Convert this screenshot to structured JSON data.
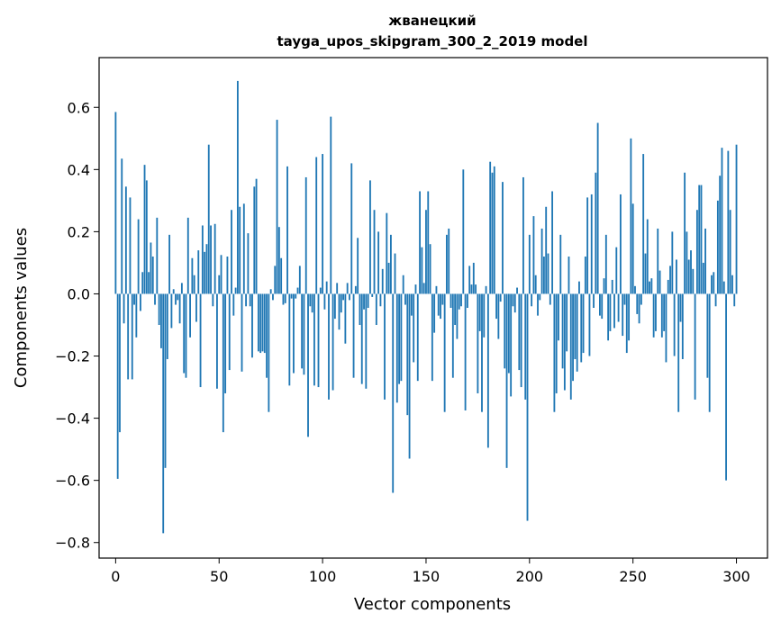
{
  "chart_data": {
    "type": "bar",
    "title": "жванецкий",
    "subtitle": "tayga_upos_skipgram_300_2_2019 model",
    "xlabel": "Vector components",
    "ylabel": "Components values",
    "xlim": [
      -8,
      315
    ],
    "ylim": [
      -0.85,
      0.76
    ],
    "x_ticks": [
      0,
      50,
      100,
      150,
      200,
      250,
      300
    ],
    "y_ticks": [
      0.6,
      0.4,
      0.2,
      0.0,
      -0.2,
      -0.4,
      -0.6,
      -0.8
    ],
    "x_tick_labels": [
      "0",
      "50",
      "100",
      "150",
      "200",
      "250",
      "300"
    ],
    "y_tick_labels": [
      "0.6",
      "0.4",
      "0.2",
      "0.0",
      "−0.2",
      "−0.4",
      "−0.6",
      "−0.8"
    ],
    "grid": false,
    "legend": "none",
    "bar_color": "#1f77b4",
    "values": [
      0.585,
      -0.595,
      -0.445,
      0.435,
      -0.095,
      0.345,
      -0.275,
      0.31,
      -0.275,
      -0.035,
      -0.14,
      0.24,
      -0.055,
      0.07,
      0.415,
      0.365,
      0.07,
      0.165,
      0.12,
      -0.035,
      0.245,
      -0.1,
      -0.175,
      -0.77,
      -0.56,
      -0.21,
      0.19,
      -0.11,
      0.015,
      -0.035,
      -0.02,
      -0.095,
      0.035,
      -0.255,
      -0.27,
      0.245,
      -0.14,
      0.115,
      0.06,
      -0.09,
      0.14,
      -0.3,
      0.22,
      0.135,
      0.16,
      0.48,
      0.22,
      -0.04,
      0.225,
      -0.305,
      0.06,
      0.125,
      -0.445,
      -0.32,
      0.12,
      -0.245,
      0.27,
      -0.07,
      0.02,
      0.685,
      0.28,
      -0.25,
      0.29,
      -0.04,
      0.195,
      -0.04,
      -0.205,
      0.345,
      0.37,
      -0.185,
      -0.19,
      -0.185,
      -0.19,
      -0.27,
      -0.38,
      0.015,
      -0.02,
      0.09,
      0.56,
      0.215,
      0.115,
      -0.035,
      -0.03,
      0.41,
      -0.295,
      -0.015,
      -0.255,
      -0.015,
      0.02,
      0.09,
      -0.24,
      -0.26,
      0.375,
      -0.46,
      -0.04,
      -0.06,
      -0.295,
      0.44,
      -0.3,
      0.02,
      0.45,
      -0.05,
      0.04,
      -0.34,
      0.57,
      -0.31,
      -0.08,
      0.035,
      -0.115,
      -0.06,
      -0.02,
      -0.16,
      0.035,
      -0.02,
      0.42,
      -0.27,
      0.025,
      0.18,
      -0.1,
      -0.29,
      -0.05,
      -0.305,
      -0.045,
      0.365,
      -0.01,
      0.27,
      -0.1,
      0.2,
      -0.04,
      0.08,
      -0.34,
      0.26,
      0.1,
      0.19,
      -0.64,
      0.13,
      -0.35,
      -0.29,
      -0.28,
      0.06,
      -0.035,
      -0.39,
      -0.53,
      -0.07,
      -0.22,
      0.03,
      -0.28,
      0.33,
      0.15,
      0.035,
      0.27,
      0.33,
      0.16,
      -0.28,
      -0.125,
      0.025,
      -0.07,
      -0.08,
      -0.035,
      -0.38,
      0.19,
      0.21,
      -0.045,
      -0.27,
      -0.1,
      -0.145,
      -0.05,
      -0.04,
      0.4,
      -0.375,
      -0.045,
      0.09,
      0.03,
      0.1,
      0.03,
      -0.32,
      -0.12,
      -0.38,
      -0.14,
      0.025,
      -0.495,
      0.425,
      0.39,
      0.41,
      -0.08,
      -0.145,
      -0.025,
      0.36,
      -0.24,
      -0.56,
      -0.255,
      -0.33,
      -0.04,
      -0.06,
      0.02,
      -0.245,
      -0.3,
      0.375,
      -0.34,
      -0.73,
      0.19,
      -0.04,
      0.25,
      0.06,
      -0.07,
      -0.02,
      0.21,
      0.12,
      0.28,
      0.13,
      -0.035,
      0.33,
      -0.38,
      -0.32,
      -0.15,
      0.19,
      -0.24,
      -0.31,
      -0.185,
      0.12,
      -0.34,
      -0.28,
      -0.21,
      -0.25,
      0.04,
      -0.22,
      -0.19,
      0.12,
      0.31,
      -0.2,
      0.32,
      -0.045,
      0.39,
      0.55,
      -0.07,
      -0.08,
      0.05,
      0.19,
      -0.15,
      -0.12,
      0.045,
      -0.11,
      0.15,
      -0.09,
      0.32,
      -0.135,
      -0.035,
      -0.19,
      -0.15,
      0.5,
      0.29,
      0.025,
      -0.065,
      -0.095,
      -0.035,
      0.45,
      0.13,
      0.24,
      0.04,
      0.05,
      -0.14,
      -0.12,
      0.21,
      0.075,
      -0.14,
      -0.12,
      -0.22,
      0.045,
      0.09,
      0.2,
      -0.2,
      0.11,
      -0.38,
      -0.09,
      -0.21,
      0.39,
      0.2,
      0.11,
      0.14,
      0.08,
      -0.34,
      0.27,
      0.35,
      0.35,
      0.1,
      0.21,
      -0.27,
      -0.38,
      0.06,
      0.07,
      -0.04,
      0.3,
      0.38,
      0.47,
      0.04,
      -0.6,
      0.46,
      0.27,
      0.06,
      -0.04,
      0.48
    ]
  }
}
